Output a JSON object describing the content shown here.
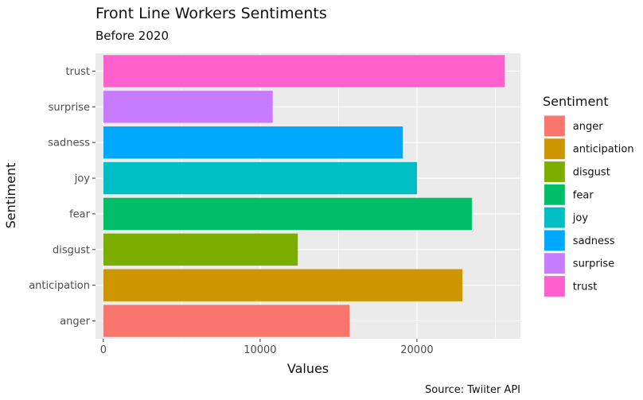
{
  "chart_data": {
    "type": "bar",
    "orientation": "horizontal",
    "title": "Front Line Workers Sentiments",
    "subtitle": "Before 2020",
    "xlabel": "Values",
    "ylabel": "Sentiment",
    "caption": "Source: Twiiter API",
    "categories": [
      "anger",
      "anticipation",
      "disgust",
      "fear",
      "joy",
      "sadness",
      "surprise",
      "trust"
    ],
    "values": [
      15700,
      22900,
      12400,
      23500,
      20000,
      19100,
      10800,
      25600
    ],
    "colors": [
      "#F8766D",
      "#CD9600",
      "#7CAE00",
      "#00BE67",
      "#00BFC4",
      "#00A9FF",
      "#C77CFF",
      "#FF61CC"
    ],
    "xticks": [
      0,
      10000,
      20000
    ],
    "xtick_labels": [
      "0",
      "10000",
      "20000"
    ],
    "xlim": [
      -500,
      26600
    ],
    "grid": true,
    "legend": {
      "title": "Sentiment",
      "position": "right",
      "entries": [
        "anger",
        "anticipation",
        "disgust",
        "fear",
        "joy",
        "sadness",
        "surprise",
        "trust"
      ]
    }
  }
}
